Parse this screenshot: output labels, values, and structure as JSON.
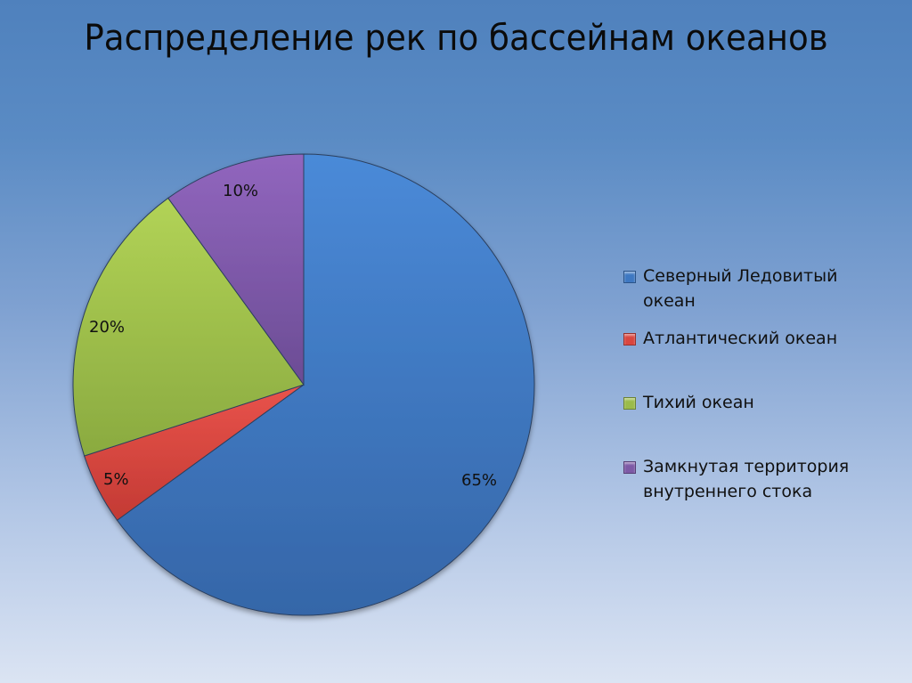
{
  "title": "Распределение рек по бассейнам океанов",
  "chart_data": {
    "type": "pie",
    "title": "Распределение рек по бассейнам океанов",
    "categories": [
      "Северный Ледовитый океан",
      "Атлантический океан",
      "Тихий океан",
      "Замкнутая территория внутреннего стока"
    ],
    "values": [
      65,
      5,
      20,
      10
    ],
    "labels": [
      "65%",
      "5%",
      "20%",
      "10%"
    ],
    "colors": [
      "#3e78c2",
      "#d9463f",
      "#9bbb4a",
      "#7d5aa6"
    ],
    "start_angle": "12 o'clock, clockwise",
    "legend_position": "right"
  },
  "legend": [
    {
      "line1": "Северный Ледовитый",
      "line2": "океан",
      "color": "#3e78c2"
    },
    {
      "line1": "Атлантический океан",
      "line2": "",
      "color": "#d9463f"
    },
    {
      "line1": "Тихий океан",
      "line2": "",
      "color": "#9bbb4a"
    },
    {
      "line1": "Замкнутая территория",
      "line2": "внутреннего стока",
      "color": "#7d5aa6"
    }
  ]
}
